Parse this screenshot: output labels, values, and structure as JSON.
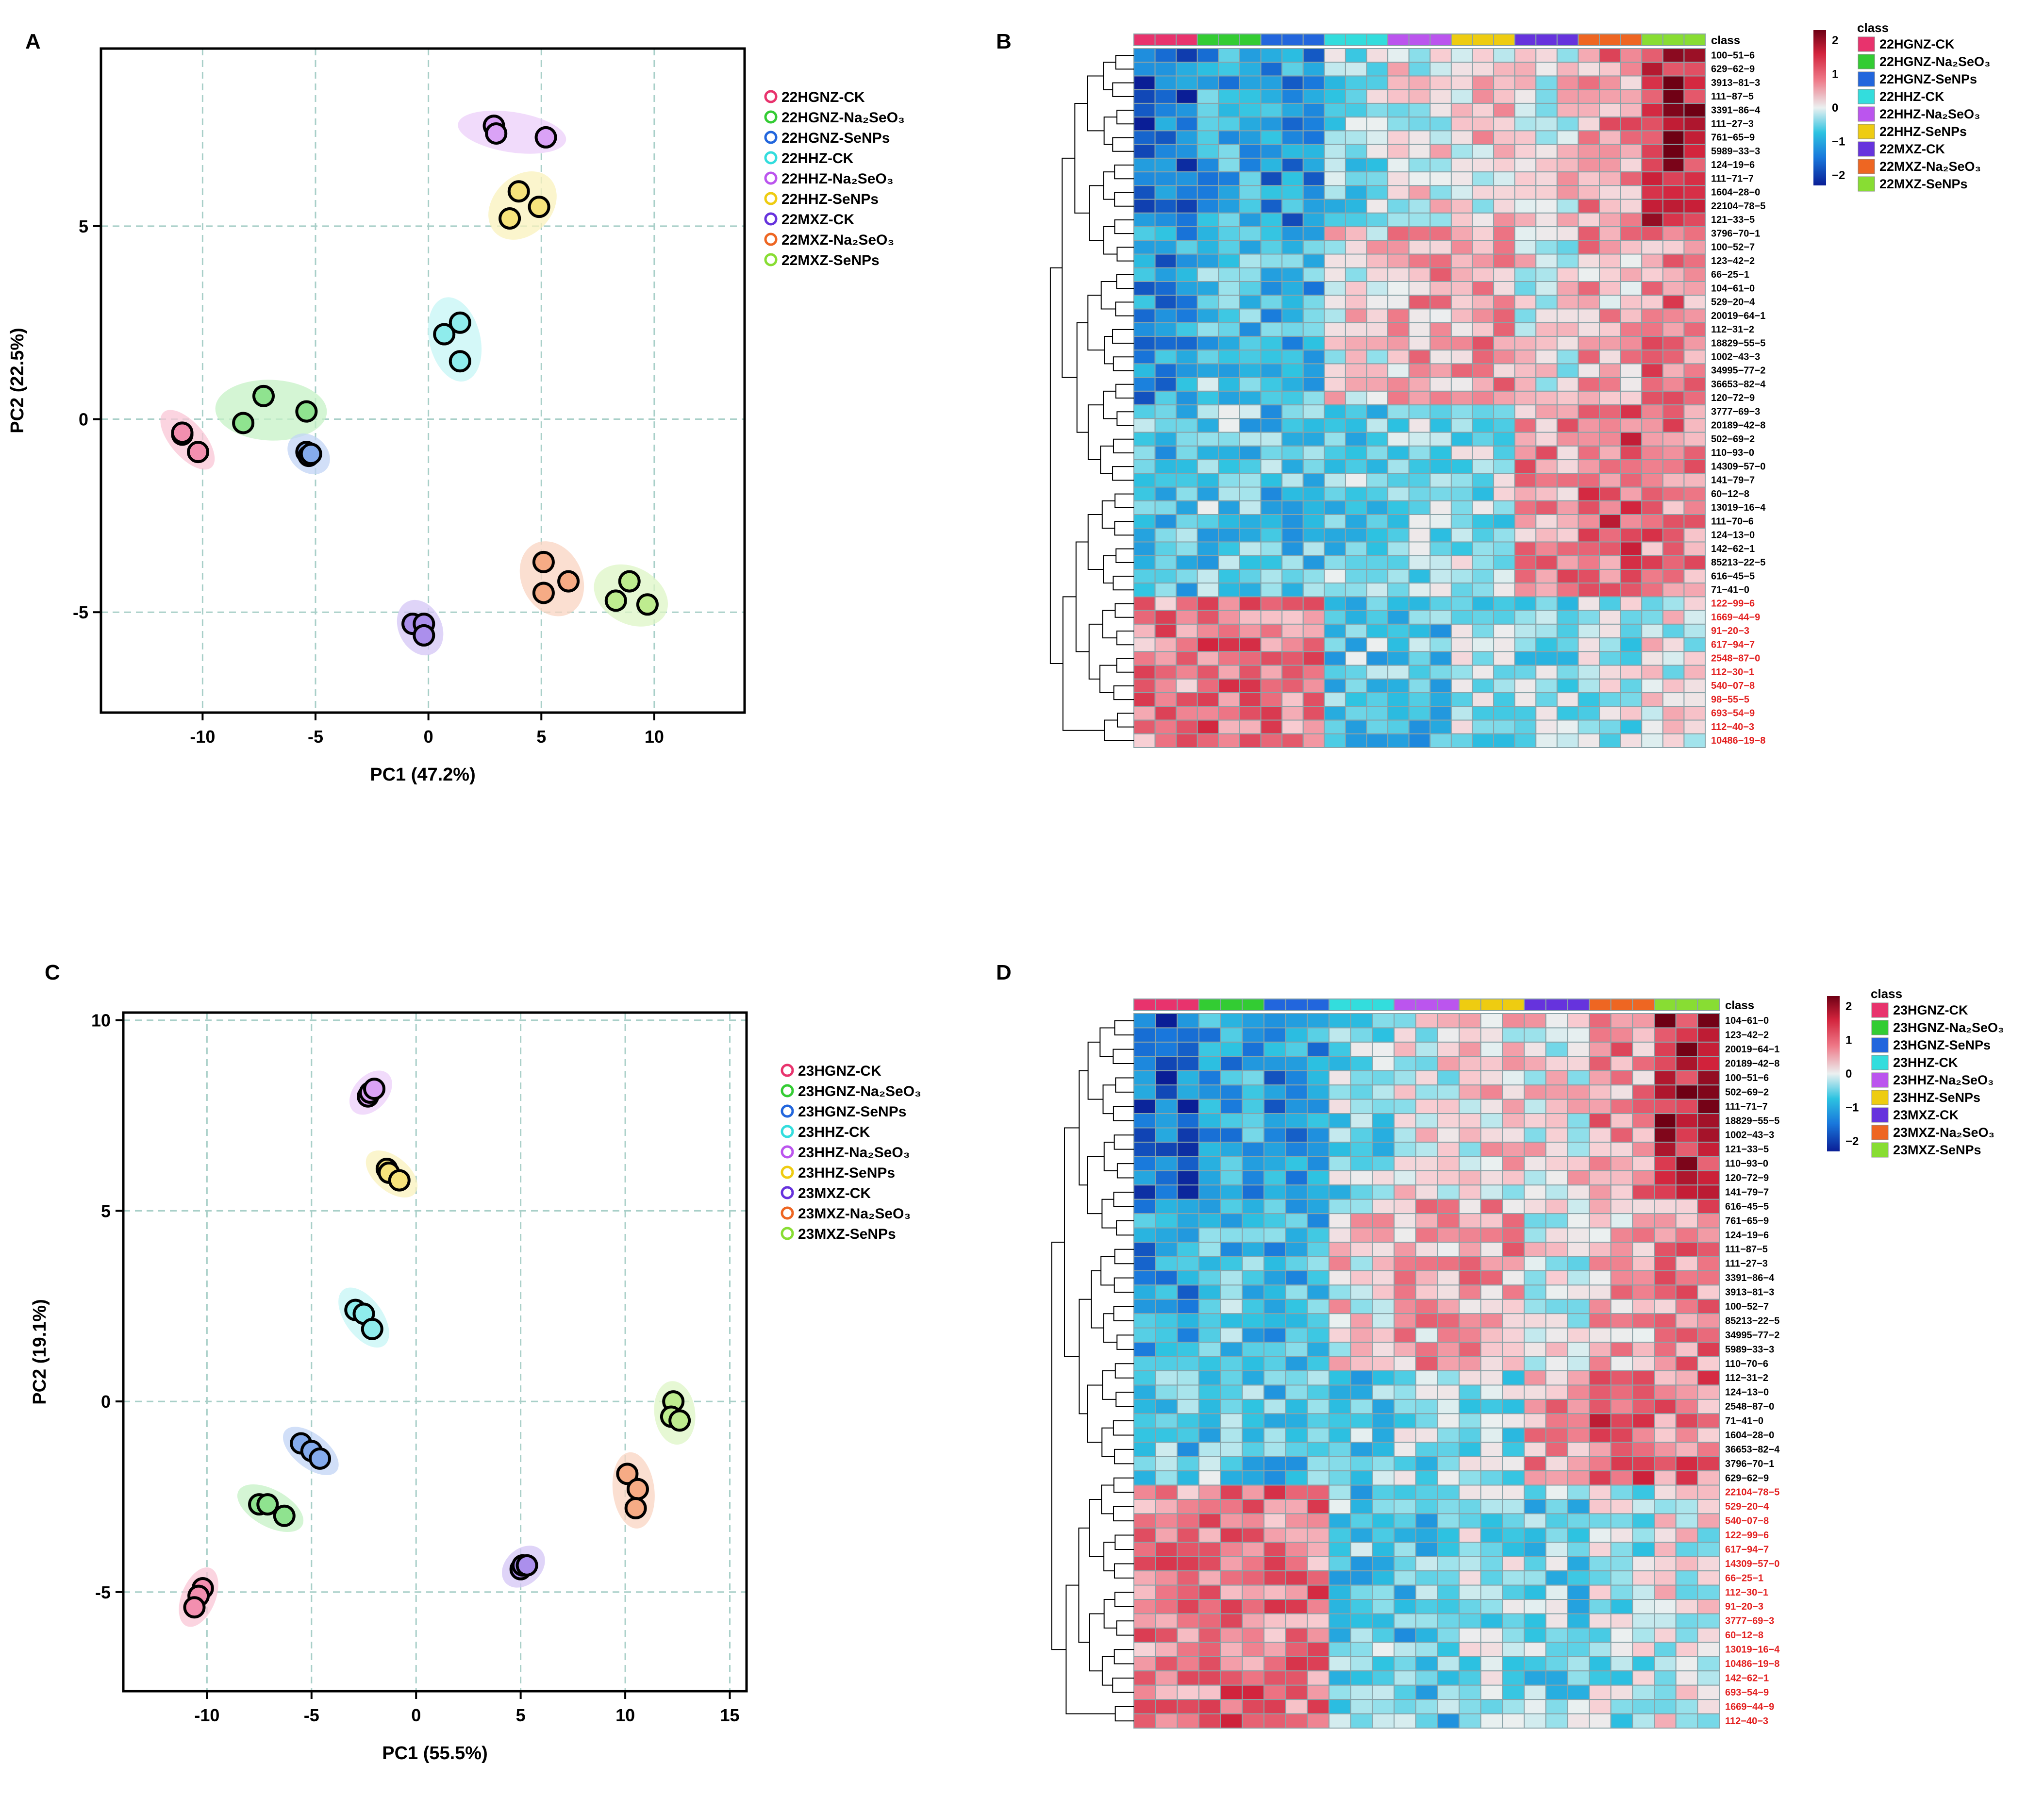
{
  "figure": {
    "panel_letters": [
      "A",
      "B",
      "C",
      "D"
    ],
    "colors": {
      "HGNZ-CK": "#e8336d",
      "HGNZ-Na2SeO3": "#33cc33",
      "HGNZ-SeNPs": "#2266dd",
      "HHZ-CK": "#33dddd",
      "HHZ-Na2SeO3": "#bb55ee",
      "HHZ-SeNPs": "#eecc11",
      "MXZ-CK": "#6633dd",
      "MXZ-Na2SeO3": "#ee6622",
      "MXZ-SeNPs": "#88dd33"
    }
  },
  "chart_data": [
    {
      "panel": "A",
      "type": "scatter",
      "title": "",
      "xlabel": "PC1 (47.2%)",
      "ylabel": "PC2 (22.5%)",
      "xlim": [
        -14.5,
        14
      ],
      "ylim": [
        -7.6,
        9.6
      ],
      "xticks": [
        -10,
        -5,
        0,
        5,
        10
      ],
      "yticks": [
        -5,
        0,
        5
      ],
      "xtick_labels": [
        "-10",
        "-5",
        "0",
        "5",
        "10"
      ],
      "ytick_labels": [
        "-5",
        "0",
        "5"
      ],
      "grid": true,
      "legend_position": "right",
      "series": [
        {
          "name": "22HGNZ-CK",
          "color_key": "HGNZ-CK",
          "points": [
            [
              -10.9,
              -0.4
            ],
            [
              -10.2,
              -0.85
            ],
            [
              -10.9,
              -0.35
            ]
          ]
        },
        {
          "name": "22HGNZ-Na₂SeO₃",
          "color_key": "HGNZ-Na2SeO3",
          "points": [
            [
              -8.2,
              -0.1
            ],
            [
              -7.3,
              0.6
            ],
            [
              -5.4,
              0.2
            ]
          ]
        },
        {
          "name": "22HGNZ-SeNPs",
          "color_key": "HGNZ-SeNPs",
          "points": [
            [
              -5.4,
              -0.85
            ],
            [
              -5.3,
              -0.95
            ],
            [
              -5.2,
              -0.9
            ]
          ]
        },
        {
          "name": "22HHZ-CK",
          "color_key": "HHZ-CK",
          "points": [
            [
              0.7,
              2.2
            ],
            [
              1.4,
              2.5
            ],
            [
              1.4,
              1.5
            ]
          ]
        },
        {
          "name": "22HHZ-Na₂SeO₃",
          "color_key": "HHZ-Na2SeO3",
          "points": [
            [
              2.9,
              7.6
            ],
            [
              3.0,
              7.4
            ],
            [
              5.2,
              7.3
            ]
          ]
        },
        {
          "name": "22HHZ-SeNPs",
          "color_key": "HHZ-SeNPs",
          "points": [
            [
              4.0,
              5.9
            ],
            [
              3.6,
              5.2
            ],
            [
              4.9,
              5.5
            ]
          ]
        },
        {
          "name": "22MXZ-CK",
          "color_key": "MXZ-CK",
          "points": [
            [
              -0.7,
              -5.3
            ],
            [
              -0.2,
              -5.3
            ],
            [
              -0.2,
              -5.6
            ]
          ]
        },
        {
          "name": "22MXZ-Na₂SeO₃",
          "color_key": "MXZ-Na2SeO3",
          "points": [
            [
              5.1,
              -3.7
            ],
            [
              6.2,
              -4.2
            ],
            [
              5.1,
              -4.5
            ]
          ]
        },
        {
          "name": "22MXZ-SeNPs",
          "color_key": "MXZ-SeNPs",
          "points": [
            [
              8.9,
              -4.2
            ],
            [
              8.3,
              -4.7
            ],
            [
              9.7,
              -4.8
            ]
          ]
        }
      ]
    },
    {
      "panel": "B",
      "type": "heatmap",
      "legend_title": "class",
      "class_label": "class",
      "scale_ticks": [
        2,
        1,
        0,
        -1,
        -2
      ],
      "scale_labels": [
        "2",
        "1",
        "0",
        "−1",
        "−2"
      ],
      "groups": [
        "22HGNZ-CK",
        "22HGNZ-Na₂SeO₃",
        "22HGNZ-SeNPs",
        "22HHZ-CK",
        "22HHZ-Na₂SeO₃",
        "22HHZ-SeNPs",
        "22MXZ-CK",
        "22MXZ-Na₂SeO₃",
        "22MXZ-SeNPs"
      ],
      "group_color_keys": [
        "HGNZ-CK",
        "HGNZ-Na2SeO3",
        "HGNZ-SeNPs",
        "HHZ-CK",
        "HHZ-Na2SeO3",
        "HHZ-SeNPs",
        "MXZ-CK",
        "MXZ-Na2SeO3",
        "MXZ-SeNPs"
      ],
      "replicates_per_group": 3,
      "rows": [
        "100−51−6",
        "629−62−9",
        "3913−81−3",
        "111−87−5",
        "3391−86−4",
        "111−27−3",
        "761−65−9",
        "5989−33−3",
        "124−19−6",
        "111−71−7",
        "1604−28−0",
        "22104−78−5",
        "121−33−5",
        "3796−70−1",
        "100−52−7",
        "123−42−2",
        "66−25−1",
        "104−61−0",
        "529−20−4",
        "20019−64−1",
        "112−31−2",
        "18829−55−5",
        "1002−43−3",
        "34995−77−2",
        "36653−82−4",
        "120−72−9",
        "3777−69−3",
        "20189−42−8",
        "502−69−2",
        "110−93−0",
        "14309−57−0",
        "141−79−7",
        "60−12−8",
        "13019−16−4",
        "111−70−6",
        "124−13−0",
        "142−62−1",
        "85213−22−5",
        "616−45−5",
        "71−41−0",
        "122−99−6",
        "1669−44−9",
        "91−20−3",
        "617−94−7",
        "2548−87−0",
        "112−30−1",
        "540−07−8",
        "98−55−5",
        "693−54−9",
        "112−40−3",
        "10486−19−8"
      ],
      "red_label_start": 40
    },
    {
      "panel": "C",
      "type": "scatter",
      "title": "",
      "xlabel": "PC1 (55.5%)",
      "ylabel": "PC2 (19.1%)",
      "xlim": [
        -14,
        15.8
      ],
      "ylim": [
        -7.6,
        10.2
      ],
      "xticks": [
        -10,
        -5,
        0,
        5,
        10,
        15
      ],
      "yticks": [
        -5,
        0,
        5,
        10
      ],
      "xtick_labels": [
        "-10",
        "-5",
        "0",
        "5",
        "10",
        "15"
      ],
      "ytick_labels": [
        "-5",
        "0",
        "5",
        "10"
      ],
      "grid": true,
      "legend_position": "right",
      "series": [
        {
          "name": "23HGNZ-CK",
          "color_key": "HGNZ-CK",
          "points": [
            [
              -10.2,
              -4.9
            ],
            [
              -10.4,
              -5.1
            ],
            [
              -10.6,
              -5.4
            ]
          ]
        },
        {
          "name": "23HGNZ-Na₂SeO₃",
          "color_key": "HGNZ-Na2SeO3",
          "points": [
            [
              -7.5,
              -2.7
            ],
            [
              -7.1,
              -2.7
            ],
            [
              -6.3,
              -3.0
            ]
          ]
        },
        {
          "name": "23HGNZ-SeNPs",
          "color_key": "HGNZ-SeNPs",
          "points": [
            [
              -5.5,
              -1.1
            ],
            [
              -5.0,
              -1.3
            ],
            [
              -4.6,
              -1.5
            ]
          ]
        },
        {
          "name": "23HHZ-CK",
          "color_key": "HHZ-CK",
          "points": [
            [
              -2.9,
              2.4
            ],
            [
              -2.5,
              2.3
            ],
            [
              -2.1,
              1.9
            ]
          ]
        },
        {
          "name": "23HHZ-Na₂SeO₃",
          "color_key": "HHZ-Na2SeO3",
          "points": [
            [
              -2.3,
              8.0
            ],
            [
              -2.2,
              8.1
            ],
            [
              -2.0,
              8.2
            ]
          ]
        },
        {
          "name": "23HHZ-SeNPs",
          "color_key": "HHZ-SeNPs",
          "points": [
            [
              -1.4,
              6.1
            ],
            [
              -1.3,
              6.0
            ],
            [
              -0.8,
              5.8
            ]
          ]
        },
        {
          "name": "23MXZ-CK",
          "color_key": "MXZ-CK",
          "points": [
            [
              5.0,
              -4.4
            ],
            [
              5.1,
              -4.3
            ],
            [
              5.3,
              -4.3
            ]
          ]
        },
        {
          "name": "23MXZ-Na₂SeO₃",
          "color_key": "MXZ-Na2SeO3",
          "points": [
            [
              10.1,
              -1.9
            ],
            [
              10.6,
              -2.3
            ],
            [
              10.5,
              -2.8
            ]
          ]
        },
        {
          "name": "23MXZ-SeNPs",
          "color_key": "MXZ-SeNPs",
          "points": [
            [
              12.3,
              0.0
            ],
            [
              12.2,
              -0.4
            ],
            [
              12.6,
              -0.5
            ]
          ]
        }
      ]
    },
    {
      "panel": "D",
      "type": "heatmap",
      "legend_title": "class",
      "class_label": "class",
      "scale_ticks": [
        2,
        1,
        0,
        -1,
        -2
      ],
      "scale_labels": [
        "2",
        "1",
        "0",
        "−1",
        "−2"
      ],
      "groups": [
        "23HGNZ-CK",
        "23HGNZ-Na₂SeO₃",
        "23HGNZ-SeNPs",
        "23HHZ-CK",
        "23HHZ-Na₂SeO₃",
        "23HHZ-SeNPs",
        "23MXZ-CK",
        "23MXZ-Na₂SeO₃",
        "23MXZ-SeNPs"
      ],
      "group_color_keys": [
        "HGNZ-CK",
        "HGNZ-Na2SeO3",
        "HGNZ-SeNPs",
        "HHZ-CK",
        "HHZ-Na2SeO3",
        "HHZ-SeNPs",
        "MXZ-CK",
        "MXZ-Na2SeO3",
        "MXZ-SeNPs"
      ],
      "replicates_per_group": 3,
      "rows": [
        "104−61−0",
        "123−42−2",
        "20019−64−1",
        "20189−42−8",
        "100−51−6",
        "502−69−2",
        "111−71−7",
        "18829−55−5",
        "1002−43−3",
        "121−33−5",
        "110−93−0",
        "120−72−9",
        "141−79−7",
        "616−45−5",
        "761−65−9",
        "124−19−6",
        "111−87−5",
        "111−27−3",
        "3391−86−4",
        "3913−81−3",
        "100−52−7",
        "85213−22−5",
        "34995−77−2",
        "5989−33−3",
        "110−70−6",
        "112−31−2",
        "124−13−0",
        "2548−87−0",
        "71−41−0",
        "1604−28−0",
        "36653−82−4",
        "3796−70−1",
        "629−62−9",
        "22104−78−5",
        "529−20−4",
        "540−07−8",
        "122−99−6",
        "617−94−7",
        "14309−57−0",
        "66−25−1",
        "112−30−1",
        "91−20−3",
        "3777−69−3",
        "60−12−8",
        "13019−16−4",
        "10486−19−8",
        "142−62−1",
        "693−54−9",
        "1669−44−9",
        "112−40−3"
      ],
      "red_label_start": 33
    }
  ]
}
